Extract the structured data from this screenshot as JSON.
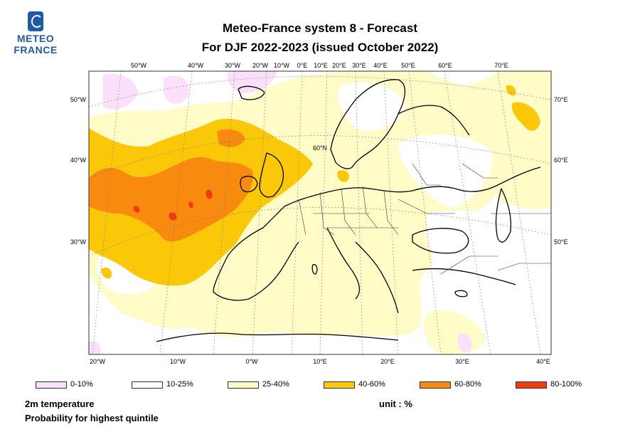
{
  "logo": {
    "line1": "METEO",
    "line2": "FRANCE"
  },
  "title": {
    "line1": "Meteo-France system 8  -  Forecast",
    "line2": "For DJF 2022-2023      (issued October 2022)"
  },
  "map": {
    "top_lon_labels": [
      "50°W",
      "40°W",
      "30°W",
      "20°W",
      "10°W",
      "0°E",
      "10°E",
      "20°E",
      "30°E",
      "40°E",
      "50°E",
      "60°E",
      "70°E"
    ],
    "bottom_lon_labels": [
      "20°W",
      "10°W",
      "0°W",
      "10°E",
      "20°E",
      "30°E",
      "40°E"
    ],
    "left_lat_labels": [
      "50°W",
      "40°W",
      "30°W"
    ],
    "right_lat_labels": [
      "70°E",
      "60°E",
      "50°E"
    ],
    "inner_label": "60°N",
    "colors": {
      "c0_10": "#fbe0fb",
      "c10_25": "#ffffff",
      "c25_40": "#fffcc8",
      "c40_60": "#fbc709",
      "c60_80": "#f98a10",
      "c80_100": "#f23c10"
    }
  },
  "legend": [
    {
      "label": "0-10%",
      "color": "#fbe0fb"
    },
    {
      "label": "10-25%",
      "color": "#ffffff"
    },
    {
      "label": "25-40%",
      "color": "#fffcc8"
    },
    {
      "label": "40-60%",
      "color": "#fbc709"
    },
    {
      "label": "60-80%",
      "color": "#f98a10"
    },
    {
      "label": "80-100%",
      "color": "#f23c10"
    }
  ],
  "footer": {
    "variable": "2m temperature",
    "subtitle": "Probability for highest quintile",
    "unit": "unit : %"
  }
}
